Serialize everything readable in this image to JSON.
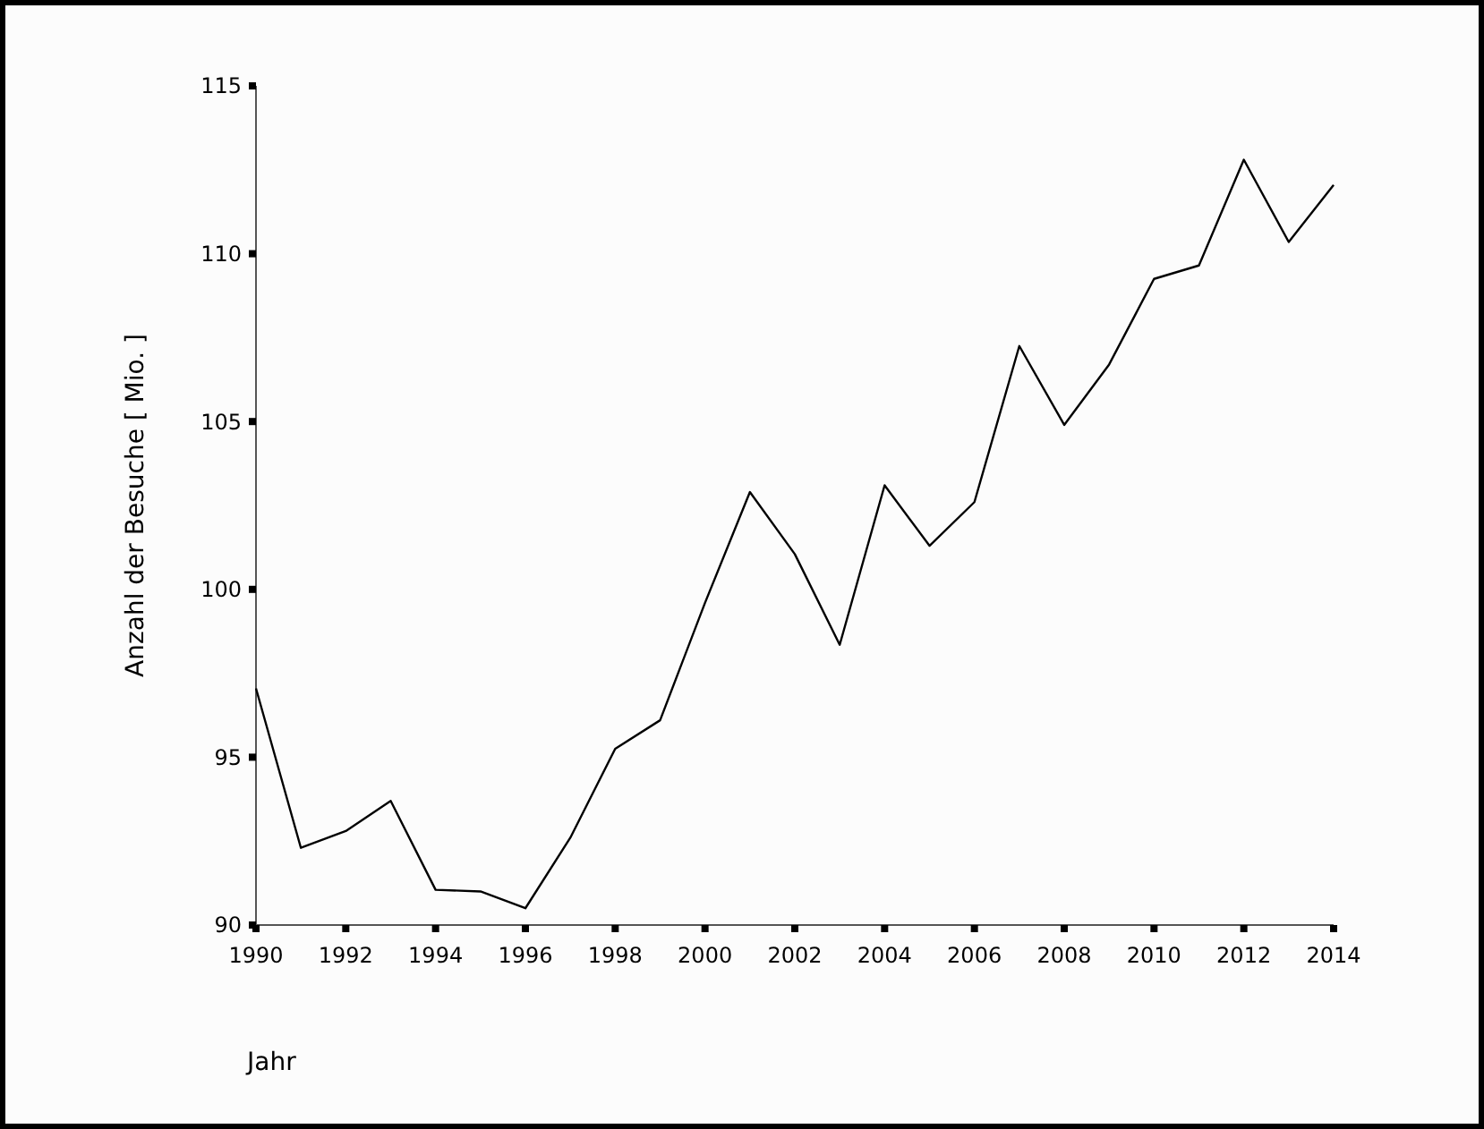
{
  "chart_data": {
    "type": "line",
    "xlabel": "Jahr",
    "ylabel": "Anzahl der Besuche [ Mio. ]",
    "x": [
      1990,
      1991,
      1992,
      1993,
      1994,
      1995,
      1996,
      1997,
      1998,
      1999,
      2000,
      2001,
      2002,
      2003,
      2004,
      2005,
      2006,
      2007,
      2008,
      2009,
      2010,
      2011,
      2012,
      2013,
      2014
    ],
    "series": [
      {
        "color": "#000000",
        "values": [
          97.05,
          92.3,
          92.8,
          93.7,
          91.05,
          91.0,
          90.5,
          92.6,
          95.25,
          96.1,
          99.6,
          102.9,
          101.05,
          98.35,
          103.1,
          101.3,
          102.6,
          107.25,
          104.9,
          106.7,
          109.25,
          109.65,
          112.8,
          110.35,
          112.05
        ]
      }
    ],
    "xlim": [
      1990,
      2014
    ],
    "xticks": [
      1990,
      1992,
      1994,
      1996,
      1998,
      2000,
      2002,
      2004,
      2006,
      2008,
      2010,
      2012,
      2014
    ],
    "ylim": [
      90,
      115
    ],
    "yticks": [
      90,
      95,
      100,
      105,
      110,
      115
    ],
    "grid": false,
    "marker": "none",
    "line_style": "solid"
  }
}
